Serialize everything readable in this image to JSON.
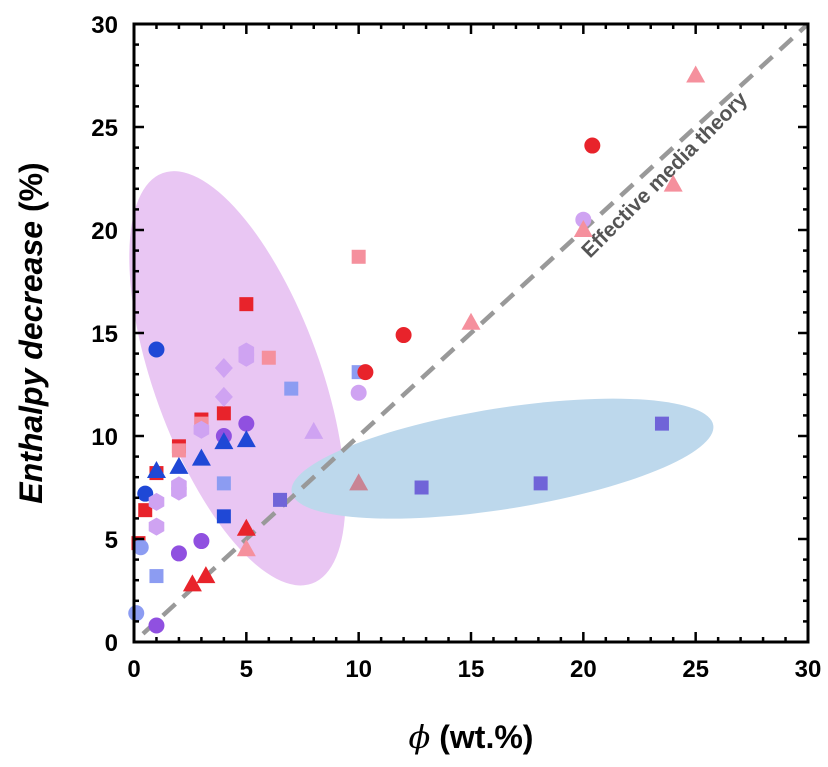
{
  "chart_data": {
    "type": "scatter",
    "title": "",
    "xlabel": {
      "symbol": "ϕ",
      "rest": " (wt.%)"
    },
    "ylabel": {
      "italic": "Enthalpy decrease",
      "rest": " (%)"
    },
    "xlim": [
      0,
      30
    ],
    "ylim": [
      0,
      30
    ],
    "xticks": [
      "0",
      "5",
      "10",
      "15",
      "20",
      "25",
      "30"
    ],
    "yticks": [
      "0",
      "5",
      "10",
      "15",
      "20",
      "25",
      "30"
    ],
    "grid": false,
    "legend": "none",
    "colors": {
      "red": "#e8232b",
      "pink": "#f5909d",
      "blue": "#1f48d6",
      "lightblue": "#8c9cf2",
      "purple": "#9050e0",
      "lavender": "#cfa3f2",
      "slate": "#7064d8",
      "rose": "#c98494",
      "ref_line": "#999999",
      "pink_region": "#e9c6f3",
      "blue_region": "#bdd8ec"
    },
    "regions": [
      {
        "name": "pink-cluster",
        "color_key": "pink_region",
        "cx": 4.6,
        "cy": 12.8,
        "rx": 3.7,
        "ry": 10.6,
        "rotation_deg": 20
      },
      {
        "name": "blue-cluster",
        "color_key": "blue_region",
        "cx": 16.4,
        "cy": 8.9,
        "rx": 9.5,
        "ry": 2.45,
        "rotation_deg": 9
      }
    ],
    "reference_line": {
      "label": "Effective media theory",
      "x": [
        0.4,
        30
      ],
      "y": [
        0.4,
        30
      ]
    },
    "annotations": [
      {
        "text": "Effective media theory",
        "x": 20.3,
        "y": 18.6,
        "rotation_deg": -45
      }
    ],
    "series": [
      {
        "name": "red-squares",
        "marker": "square",
        "color_key": "red",
        "points": [
          [
            0.2,
            4.8
          ],
          [
            0.5,
            6.4
          ],
          [
            1,
            8.2
          ],
          [
            2,
            9.5
          ],
          [
            3,
            10.8
          ],
          [
            4,
            11.1
          ],
          [
            5,
            16.4
          ]
        ]
      },
      {
        "name": "pink-squares",
        "marker": "square",
        "color_key": "pink",
        "points": [
          [
            2,
            9.3
          ],
          [
            3,
            10.6
          ],
          [
            6,
            13.8
          ],
          [
            10,
            18.7
          ]
        ]
      },
      {
        "name": "light-blue-squares",
        "marker": "square",
        "color_key": "lightblue",
        "points": [
          [
            1,
            3.2
          ],
          [
            4,
            7.7
          ],
          [
            7,
            12.3
          ],
          [
            10,
            13.1
          ]
        ]
      },
      {
        "name": "blue-squares",
        "marker": "square",
        "color_key": "blue",
        "points": [
          [
            4,
            6.1
          ]
        ]
      },
      {
        "name": "slate-squares",
        "marker": "square",
        "color_key": "slate",
        "points": [
          [
            6.5,
            6.9
          ],
          [
            12.8,
            7.5
          ],
          [
            18.1,
            7.7
          ],
          [
            23.5,
            10.6
          ]
        ]
      },
      {
        "name": "red-circles",
        "marker": "circle",
        "color_key": "red",
        "points": [
          [
            10.3,
            13.1
          ],
          [
            12,
            14.9
          ],
          [
            20.4,
            24.1
          ]
        ]
      },
      {
        "name": "blue-circles",
        "marker": "circle",
        "color_key": "blue",
        "points": [
          [
            0.5,
            7.2
          ],
          [
            1,
            14.2
          ]
        ]
      },
      {
        "name": "purple-circles",
        "marker": "circle",
        "color_key": "purple",
        "points": [
          [
            1,
            0.8
          ],
          [
            2,
            4.3
          ],
          [
            3,
            4.9
          ],
          [
            4,
            10.0
          ],
          [
            5,
            10.6
          ]
        ]
      },
      {
        "name": "lavender-circles",
        "marker": "circle",
        "color_key": "lavender",
        "points": [
          [
            10,
            12.1
          ],
          [
            20,
            20.5
          ]
        ]
      },
      {
        "name": "light-blue-circles",
        "marker": "circle",
        "color_key": "lightblue",
        "points": [
          [
            0.1,
            1.4
          ],
          [
            0.3,
            4.6
          ]
        ]
      },
      {
        "name": "red-triangles",
        "marker": "triangle",
        "color_key": "red",
        "points": [
          [
            2.6,
            2.8
          ],
          [
            3.2,
            3.2
          ],
          [
            5,
            5.5
          ]
        ]
      },
      {
        "name": "pink-triangles",
        "marker": "triangle",
        "color_key": "pink",
        "points": [
          [
            5,
            4.5
          ],
          [
            15,
            15.5
          ],
          [
            20,
            20
          ],
          [
            24,
            22.2
          ],
          [
            25,
            27.5
          ]
        ]
      },
      {
        "name": "blue-triangles",
        "marker": "triangle",
        "color_key": "blue",
        "points": [
          [
            1,
            8.3
          ],
          [
            2,
            8.5
          ],
          [
            3,
            8.9
          ],
          [
            4,
            9.7
          ],
          [
            5,
            9.8
          ]
        ]
      },
      {
        "name": "lavender-triangles",
        "marker": "triangle",
        "color_key": "lavender",
        "points": [
          [
            8,
            10.2
          ]
        ]
      },
      {
        "name": "rose-triangles",
        "marker": "triangle",
        "color_key": "rose",
        "points": [
          [
            10,
            7.7
          ]
        ]
      },
      {
        "name": "lavender-hexagons",
        "marker": "hexagon",
        "color_key": "lavender",
        "points": [
          [
            1,
            5.6
          ],
          [
            1,
            6.8
          ],
          [
            2,
            7.3
          ],
          [
            2,
            7.6
          ],
          [
            3,
            10.3
          ],
          [
            5,
            13.8
          ],
          [
            5,
            14.1
          ]
        ]
      },
      {
        "name": "lavender-diamonds",
        "marker": "diamond",
        "color_key": "lavender",
        "points": [
          [
            4,
            11.9
          ],
          [
            4,
            13.3
          ]
        ]
      }
    ]
  }
}
